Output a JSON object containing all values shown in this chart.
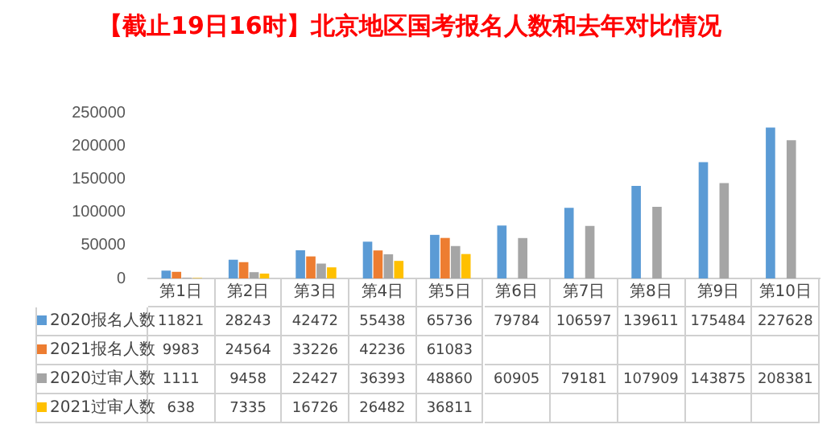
{
  "chart_data": {
    "type": "bar",
    "title": "【截止19日16时】北京地区国考报名人数和去年对比情况",
    "categories": [
      "第1日",
      "第2日",
      "第3日",
      "第4日",
      "第5日",
      "第6日",
      "第7日",
      "第8日",
      "第9日",
      "第10日"
    ],
    "series": [
      {
        "name": "2020报名人数",
        "color": "#5b9bd5",
        "values": [
          11821,
          28243,
          42472,
          55438,
          65736,
          79784,
          106597,
          139611,
          175484,
          227628
        ]
      },
      {
        "name": "2021报名人数",
        "color": "#ed7d31",
        "values": [
          9983,
          24564,
          33226,
          42236,
          61083,
          null,
          null,
          null,
          null,
          null
        ]
      },
      {
        "name": "2020过审人数",
        "color": "#a5a5a5",
        "values": [
          1111,
          9458,
          22427,
          36393,
          48860,
          60905,
          79181,
          107909,
          143875,
          208381
        ]
      },
      {
        "name": "2021过审人数",
        "color": "#ffc000",
        "values": [
          638,
          7335,
          16726,
          26482,
          36811,
          null,
          null,
          null,
          null,
          null
        ]
      }
    ],
    "ylim": [
      0,
      250000
    ],
    "yticks": [
      0,
      50000,
      100000,
      150000,
      200000,
      250000
    ],
    "grid": false,
    "legend": "bottom",
    "data_labels": true
  }
}
